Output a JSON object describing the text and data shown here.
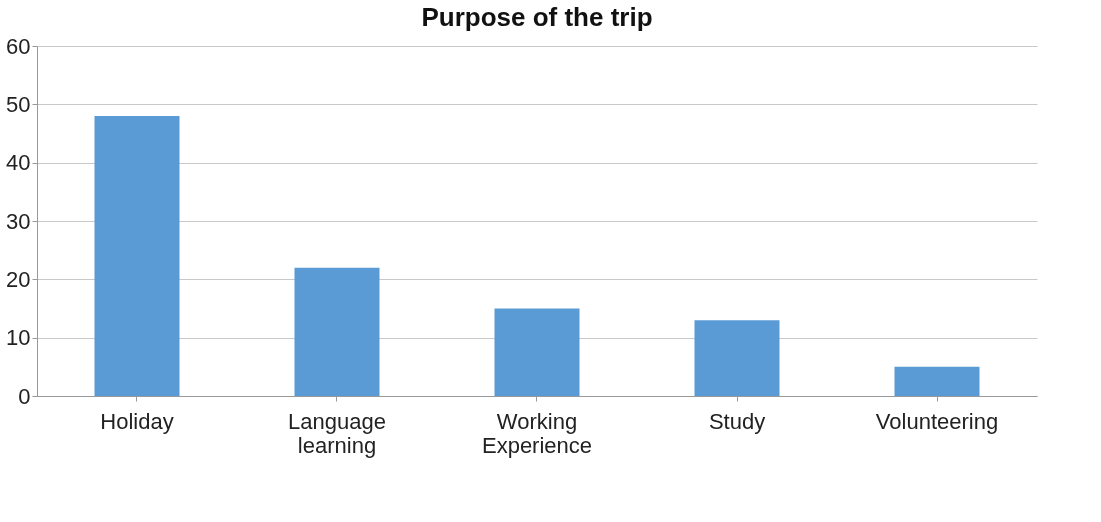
{
  "chart_data": {
    "type": "bar",
    "title": "Purpose of the trip",
    "categories": [
      "Holiday",
      "Language learning",
      "Working Experience",
      "Study",
      "Volunteering"
    ],
    "values": [
      48,
      22,
      15,
      13,
      5
    ],
    "color": "#5b9bd5",
    "ylim": [
      0,
      60
    ],
    "yticks": [
      0,
      10,
      20,
      30,
      40,
      50,
      60
    ],
    "grid": "y"
  }
}
